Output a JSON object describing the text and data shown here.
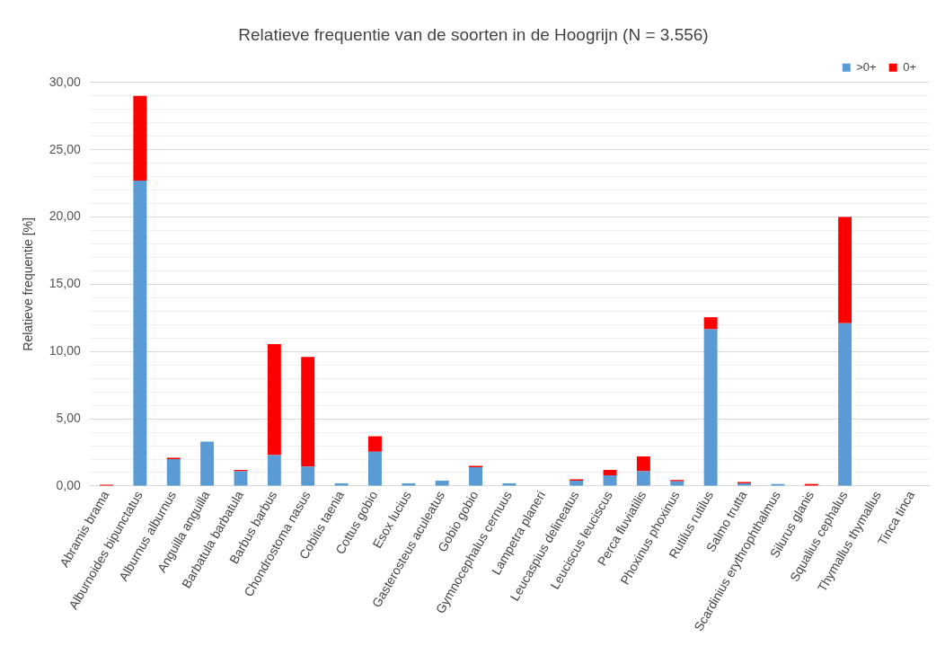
{
  "chart_data": {
    "type": "bar",
    "title": "Relatieve frequentie van de soorten in de Hoogrijn (N = 3.556)",
    "ylabel": "Relatieve frequentie [%]",
    "categories": [
      "Abramis brama",
      "Alburnoides bipunctatus",
      "Alburnus alburnus",
      "Anguilla anguilla",
      "Barbatula barbatula",
      "Barbus barbus",
      "Chondrostoma nasus",
      "Cobitis taenia",
      "Cottus gobio",
      "Esox lucius",
      "Gasterosteus aculeatus",
      "Gobio gobio",
      "Gymnocephalus cernuus",
      "Lampetra planeri",
      "Leucaspius delineatus",
      "Leuciscus leuciscus",
      "Perca fluviatilis",
      "Phoxinus phoxinus",
      "Rutilus rutilus",
      "Salmo trutta",
      "Scardinius erythrophthalmus",
      "Silurus glanis",
      "Squalius cephalus",
      "Thymallus thymallus",
      "Tinca tinca"
    ],
    "stacked": true,
    "series": [
      {
        "name": ">0+",
        "color": "#5b9bd5",
        "values": [
          0,
          22.7,
          2.0,
          3.3,
          1.1,
          2.3,
          1.45,
          0.2,
          2.55,
          0.2,
          0.4,
          1.4,
          0.2,
          0,
          0.4,
          0.8,
          1.1,
          0.35,
          11.65,
          0.2,
          0.15,
          0,
          12.1,
          0,
          0
        ]
      },
      {
        "name": "0+",
        "color": "#ff0000",
        "values": [
          0.1,
          6.3,
          0.1,
          0,
          0.1,
          8.25,
          8.15,
          0,
          1.15,
          0,
          0,
          0.1,
          0,
          0,
          0.1,
          0.4,
          1.1,
          0.1,
          0.9,
          0.1,
          0,
          0.15,
          7.9,
          0,
          0
        ]
      }
    ],
    "ylim": [
      0,
      30
    ],
    "yticks": [
      {
        "value": 0,
        "label": "0,00"
      },
      {
        "value": 1,
        "label": null
      },
      {
        "value": 2,
        "label": null
      },
      {
        "value": 3,
        "label": null
      },
      {
        "value": 4,
        "label": null
      },
      {
        "value": 5,
        "label": "5,00"
      },
      {
        "value": 6,
        "label": null
      },
      {
        "value": 7,
        "label": null
      },
      {
        "value": 8,
        "label": null
      },
      {
        "value": 9,
        "label": null
      },
      {
        "value": 10,
        "label": "10,00"
      },
      {
        "value": 11,
        "label": null
      },
      {
        "value": 12,
        "label": null
      },
      {
        "value": 13,
        "label": null
      },
      {
        "value": 14,
        "label": null
      },
      {
        "value": 15,
        "label": "15,00"
      },
      {
        "value": 16,
        "label": null
      },
      {
        "value": 17,
        "label": null
      },
      {
        "value": 18,
        "label": null
      },
      {
        "value": 19,
        "label": null
      },
      {
        "value": 20,
        "label": "20,00"
      },
      {
        "value": 21,
        "label": null
      },
      {
        "value": 22,
        "label": null
      },
      {
        "value": 23,
        "label": null
      },
      {
        "value": 24,
        "label": null
      },
      {
        "value": 25,
        "label": "25,00"
      },
      {
        "value": 26,
        "label": null
      },
      {
        "value": 27,
        "label": null
      },
      {
        "value": 28,
        "label": null
      },
      {
        "value": 29,
        "label": null
      },
      {
        "value": 30,
        "label": "30,00"
      }
    ],
    "grid": "y",
    "legend": "top right"
  }
}
